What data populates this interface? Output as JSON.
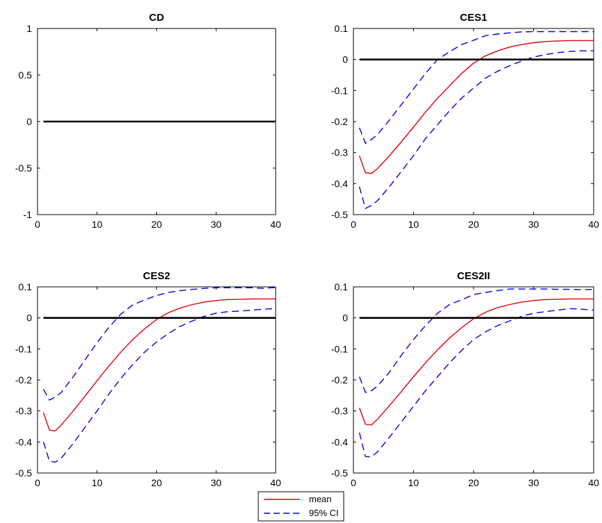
{
  "chart_data": [
    {
      "type": "line",
      "title": "CD",
      "xlim": [
        0,
        40
      ],
      "ylim": [
        -1,
        1
      ],
      "xticks": [
        0,
        10,
        20,
        30,
        40
      ],
      "yticks": [
        -1,
        -0.5,
        0,
        0.5,
        1
      ],
      "xtick_labels": [
        "0",
        "10",
        "20",
        "30",
        "40"
      ],
      "ytick_labels": [
        "-1",
        "-0.5",
        "0",
        "0.5",
        "1"
      ],
      "grid": false,
      "zero_line": {
        "x_start": 1,
        "x_end": 40,
        "y": 0
      },
      "series": []
    },
    {
      "type": "line",
      "title": "CES1",
      "xlim": [
        0,
        40
      ],
      "ylim": [
        -0.5,
        0.1
      ],
      "xticks": [
        0,
        10,
        20,
        30,
        40
      ],
      "yticks": [
        -0.5,
        -0.4,
        -0.3,
        -0.2,
        -0.1,
        0,
        0.1
      ],
      "xtick_labels": [
        "0",
        "10",
        "20",
        "30",
        "40"
      ],
      "ytick_labels": [
        "-0.5",
        "-0.4",
        "-0.3",
        "-0.2",
        "-0.1",
        "0",
        "0.1"
      ],
      "grid": false,
      "zero_line": {
        "x_start": 1,
        "x_end": 40,
        "y": 0
      },
      "series": [
        {
          "name": "mean",
          "color": "#e0000b",
          "style": "solid",
          "x": [
            1,
            2,
            3,
            4,
            6,
            8,
            10,
            12,
            14,
            16,
            18,
            20,
            22,
            24,
            26,
            28,
            30,
            32,
            34,
            36,
            38,
            40
          ],
          "y": [
            -0.31,
            -0.365,
            -0.367,
            -0.352,
            -0.31,
            -0.265,
            -0.218,
            -0.17,
            -0.125,
            -0.085,
            -0.045,
            -0.012,
            0.012,
            0.028,
            0.04,
            0.048,
            0.054,
            0.058,
            0.06,
            0.061,
            0.061,
            0.061
          ]
        },
        {
          "name": "95% CI",
          "color": "#0000d8",
          "style": "dashed",
          "x": [
            1,
            2,
            3,
            4,
            6,
            8,
            10,
            12,
            14,
            16,
            18,
            20,
            22,
            24,
            26,
            28,
            30,
            32,
            34,
            36,
            38,
            40
          ],
          "y": [
            -0.22,
            -0.27,
            -0.258,
            -0.242,
            -0.195,
            -0.145,
            -0.095,
            -0.045,
            0.0,
            0.025,
            0.048,
            0.062,
            0.077,
            0.082,
            0.086,
            0.089,
            0.09,
            0.09,
            0.09,
            0.09,
            0.09,
            0.09
          ]
        },
        {
          "name": "",
          "color": "#0000d8",
          "style": "dashed",
          "x": [
            1,
            2,
            3,
            4,
            6,
            8,
            10,
            12,
            14,
            16,
            18,
            20,
            22,
            24,
            26,
            28,
            30,
            32,
            34,
            36,
            38,
            40
          ],
          "y": [
            -0.41,
            -0.48,
            -0.47,
            -0.455,
            -0.41,
            -0.36,
            -0.31,
            -0.255,
            -0.21,
            -0.165,
            -0.125,
            -0.092,
            -0.06,
            -0.038,
            -0.02,
            -0.005,
            0.008,
            0.016,
            0.022,
            0.026,
            0.028,
            0.028
          ]
        }
      ]
    },
    {
      "type": "line",
      "title": "CES2",
      "xlim": [
        0,
        40
      ],
      "ylim": [
        -0.5,
        0.1
      ],
      "xticks": [
        0,
        10,
        20,
        30,
        40
      ],
      "yticks": [
        -0.5,
        -0.4,
        -0.3,
        -0.2,
        -0.1,
        0,
        0.1
      ],
      "xtick_labels": [
        "0",
        "10",
        "20",
        "30",
        "40"
      ],
      "ytick_labels": [
        "-0.5",
        "-0.4",
        "-0.3",
        "-0.2",
        "-0.1",
        "0",
        "0.1"
      ],
      "grid": false,
      "zero_line": {
        "x_start": 1,
        "x_end": 40,
        "y": 0
      },
      "series": [
        {
          "name": "mean",
          "color": "#e0000b",
          "style": "solid",
          "x": [
            1,
            2,
            3,
            4,
            6,
            8,
            10,
            12,
            14,
            16,
            18,
            20,
            22,
            24,
            26,
            28,
            30,
            32,
            34,
            36,
            38,
            40
          ],
          "y": [
            -0.305,
            -0.362,
            -0.364,
            -0.345,
            -0.3,
            -0.252,
            -0.202,
            -0.155,
            -0.11,
            -0.07,
            -0.035,
            -0.005,
            0.017,
            0.032,
            0.043,
            0.051,
            0.056,
            0.059,
            0.06,
            0.061,
            0.061,
            0.061
          ]
        },
        {
          "name": "95% CI",
          "color": "#0000d8",
          "style": "dashed",
          "x": [
            1,
            2,
            3,
            4,
            6,
            8,
            10,
            12,
            14,
            16,
            18,
            20,
            22,
            24,
            26,
            28,
            30,
            32,
            34,
            36,
            38,
            40
          ],
          "y": [
            -0.23,
            -0.265,
            -0.255,
            -0.24,
            -0.19,
            -0.135,
            -0.08,
            -0.03,
            0.012,
            0.042,
            0.058,
            0.072,
            0.082,
            0.088,
            0.092,
            0.095,
            0.097,
            0.097,
            0.097,
            0.097,
            0.095,
            0.098
          ]
        },
        {
          "name": "",
          "color": "#0000d8",
          "style": "dashed",
          "x": [
            1,
            2,
            3,
            4,
            6,
            8,
            10,
            12,
            14,
            16,
            18,
            20,
            22,
            24,
            26,
            28,
            30,
            32,
            34,
            36,
            38,
            40
          ],
          "y": [
            -0.4,
            -0.462,
            -0.465,
            -0.452,
            -0.405,
            -0.352,
            -0.3,
            -0.245,
            -0.195,
            -0.15,
            -0.11,
            -0.078,
            -0.05,
            -0.027,
            -0.01,
            0.005,
            0.015,
            0.02,
            0.022,
            0.025,
            0.028,
            0.03
          ]
        }
      ]
    },
    {
      "type": "line",
      "title": "CES2II",
      "xlim": [
        0,
        40
      ],
      "ylim": [
        -0.5,
        0.1
      ],
      "xticks": [
        0,
        10,
        20,
        30,
        40
      ],
      "yticks": [
        -0.5,
        -0.4,
        -0.3,
        -0.2,
        -0.1,
        0,
        0.1
      ],
      "xtick_labels": [
        "0",
        "10",
        "20",
        "30",
        "40"
      ],
      "ytick_labels": [
        "-0.5",
        "-0.4",
        "-0.3",
        "-0.2",
        "-0.1",
        "0",
        "0.1"
      ],
      "grid": false,
      "zero_line": {
        "x_start": 1,
        "x_end": 40,
        "y": 0
      },
      "series": [
        {
          "name": "mean",
          "color": "#e0000b",
          "style": "solid",
          "x": [
            1,
            2,
            3,
            4,
            6,
            8,
            10,
            12,
            14,
            16,
            18,
            20,
            22,
            24,
            26,
            28,
            30,
            32,
            34,
            36,
            38,
            40
          ],
          "y": [
            -0.29,
            -0.343,
            -0.345,
            -0.327,
            -0.283,
            -0.237,
            -0.19,
            -0.145,
            -0.103,
            -0.065,
            -0.032,
            -0.003,
            0.018,
            0.033,
            0.043,
            0.051,
            0.056,
            0.059,
            0.06,
            0.061,
            0.061,
            0.061
          ]
        },
        {
          "name": "95% CI",
          "color": "#0000d8",
          "style": "dashed",
          "x": [
            1,
            2,
            3,
            4,
            6,
            8,
            10,
            12,
            14,
            16,
            18,
            20,
            22,
            24,
            26,
            28,
            30,
            32,
            34,
            36,
            38,
            40
          ],
          "y": [
            -0.19,
            -0.24,
            -0.235,
            -0.22,
            -0.175,
            -0.12,
            -0.07,
            -0.025,
            0.015,
            0.043,
            0.058,
            0.075,
            0.082,
            0.088,
            0.093,
            0.093,
            0.093,
            0.093,
            0.092,
            0.092,
            0.091,
            0.092
          ]
        },
        {
          "name": "",
          "color": "#0000d8",
          "style": "dashed",
          "x": [
            1,
            2,
            3,
            4,
            6,
            8,
            10,
            12,
            14,
            16,
            18,
            20,
            22,
            24,
            26,
            28,
            30,
            32,
            34,
            36,
            38,
            40
          ],
          "y": [
            -0.37,
            -0.447,
            -0.448,
            -0.432,
            -0.385,
            -0.335,
            -0.285,
            -0.235,
            -0.19,
            -0.145,
            -0.105,
            -0.07,
            -0.045,
            -0.025,
            -0.01,
            0.005,
            0.015,
            0.02,
            0.025,
            0.03,
            0.028,
            0.025
          ]
        }
      ]
    }
  ],
  "legend": {
    "placement": "bottom-center",
    "entries": [
      {
        "label": "mean",
        "color": "#e0000b",
        "style": "solid"
      },
      {
        "label": "95% CI",
        "color": "#0000d8",
        "style": "dashed"
      }
    ]
  }
}
